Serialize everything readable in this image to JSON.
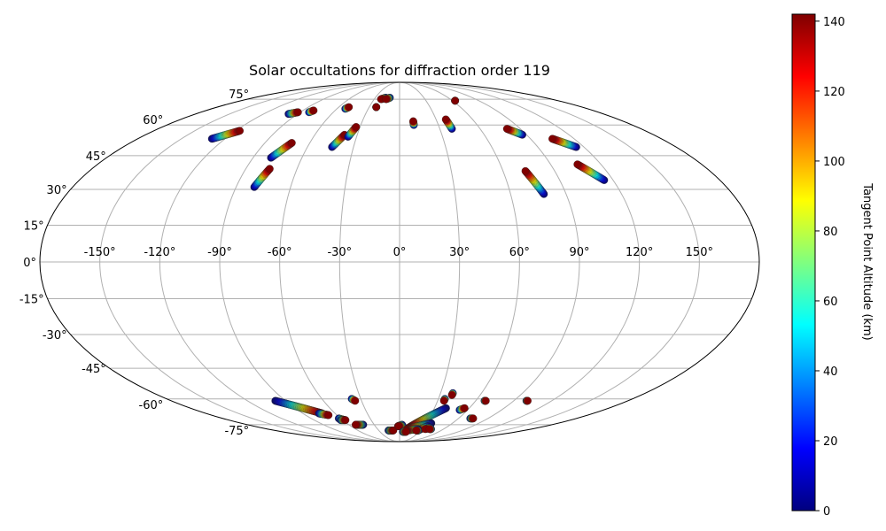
{
  "chart_data": {
    "type": "scatter",
    "projection": "mollweide",
    "title": "Solar occultations for diffraction order 119",
    "grid": true,
    "lon_ticks": [
      "-150°",
      "-120°",
      "-90°",
      "-60°",
      "-30°",
      "0°",
      "30°",
      "60°",
      "90°",
      "120°",
      "150°"
    ],
    "lon_tick_values": [
      -150,
      -120,
      -90,
      -60,
      -30,
      0,
      30,
      60,
      90,
      120,
      150
    ],
    "lat_ticks": [
      "75°",
      "60°",
      "45°",
      "30°",
      "15°",
      "0°",
      "-15°",
      "-30°",
      "-45°",
      "-60°",
      "-75°"
    ],
    "lat_tick_values": [
      75,
      60,
      45,
      30,
      15,
      0,
      -15,
      -30,
      -45,
      -60,
      -75
    ],
    "colorbar": {
      "label": "Tangent Point Altitude (km)",
      "min": 0,
      "max": 142,
      "colormap": "jet",
      "ticks": [
        "0",
        "20",
        "40",
        "60",
        "80",
        "100",
        "120",
        "140"
      ],
      "tick_values": [
        0,
        20,
        40,
        60,
        80,
        100,
        120,
        140
      ]
    },
    "series": [
      {
        "lon_start": -129,
        "lat_start": 53,
        "lon_end": -117,
        "lat_end": 57
      },
      {
        "lon_start": -98,
        "lat_start": 66,
        "lon_end": -92,
        "lat_end": 67
      },
      {
        "lon_start": -82,
        "lat_start": 67,
        "lon_end": -80,
        "lat_end": 68
      },
      {
        "lon_start": -52,
        "lat_start": 69,
        "lon_end": -50,
        "lat_end": 70
      },
      {
        "lon_start": -79,
        "lat_start": 44,
        "lon_end": -72,
        "lat_end": 51
      },
      {
        "lon_start": -80,
        "lat_start": 31,
        "lon_end": -76,
        "lat_end": 39
      },
      {
        "lon_start": -44,
        "lat_start": 49,
        "lon_end": -39,
        "lat_end": 55
      },
      {
        "lon_start": -36,
        "lat_start": 54,
        "lon_end": -33,
        "lat_end": 59
      },
      {
        "lon_start": -17,
        "lat_start": 76,
        "lon_end": -22,
        "lat_end": 75
      },
      {
        "lon_start": -23,
        "lat_start": 70,
        "lon_end": -23,
        "lat_end": 70
      },
      {
        "lon_start": -12,
        "lat_start": 76,
        "lon_end": -16,
        "lat_end": 75
      },
      {
        "lon_start": 11,
        "lat_start": 60,
        "lon_end": 11,
        "lat_end": 62
      },
      {
        "lon_start": 39,
        "lat_start": 58,
        "lon_end": 38,
        "lat_end": 63
      },
      {
        "lon_start": 63,
        "lat_start": 74,
        "lon_end": 63,
        "lat_end": 74
      },
      {
        "lon_start": 87,
        "lat_start": 55,
        "lon_end": 80,
        "lat_end": 58
      },
      {
        "lon_start": 115,
        "lat_start": 49,
        "lon_end": 105,
        "lat_end": 53
      },
      {
        "lon_start": 78,
        "lat_start": 28,
        "lon_end": 73,
        "lat_end": 38
      },
      {
        "lon_start": 115,
        "lat_start": 34,
        "lon_end": 106,
        "lat_end": 41
      },
      {
        "lon_start": -98,
        "lat_start": -61,
        "lon_end": -72,
        "lat_end": -68
      },
      {
        "lon_start": -75,
        "lat_start": -68,
        "lon_end": -68,
        "lat_end": -69
      },
      {
        "lon_start": -62,
        "lat_start": -71,
        "lon_end": -58,
        "lat_end": -72
      },
      {
        "lon_start": -62,
        "lat_start": -72,
        "lon_end": -57,
        "lat_end": -72
      },
      {
        "lon_start": -43,
        "lat_start": -75,
        "lon_end": -52,
        "lat_end": -75
      },
      {
        "lon_start": -37,
        "lat_start": -60,
        "lon_end": -35,
        "lat_end": -61
      },
      {
        "lon_start": -16,
        "lat_start": -79,
        "lon_end": -9,
        "lat_end": -79
      },
      {
        "lon_start": 40,
        "lat_start": -65,
        "lon_end": 12,
        "lat_end": -77
      },
      {
        "lon_start": 35,
        "lat_start": -60,
        "lon_end": 35,
        "lat_end": -61
      },
      {
        "lon_start": 39,
        "lat_start": -57,
        "lon_end": 39,
        "lat_end": -58
      },
      {
        "lon_start": 53,
        "lat_start": -66,
        "lon_end": 56,
        "lat_end": -65
      },
      {
        "lon_start": 67,
        "lat_start": -61,
        "lon_end": 68,
        "lat_end": -61
      },
      {
        "lon_start": 72,
        "lat_start": -71,
        "lon_end": 75,
        "lat_end": -71
      },
      {
        "lon_start": 100,
        "lat_start": -61,
        "lon_end": 101,
        "lat_end": -61
      },
      {
        "lon_start": 3,
        "lat_start": -75,
        "lon_end": -2,
        "lat_end": -76
      },
      {
        "lon_start": 4,
        "lat_start": -76,
        "lon_end": -1,
        "lat_end": -76
      },
      {
        "lon_start": 36,
        "lat_start": -74,
        "lon_end": 10,
        "lat_end": -78
      },
      {
        "lon_start": 35,
        "lat_start": -76,
        "lon_end": 26,
        "lat_end": -79
      },
      {
        "lon_start": 25,
        "lat_start": -78,
        "lon_end": 9,
        "lat_end": -79
      },
      {
        "lon_start": 5,
        "lat_start": -80,
        "lon_end": 10,
        "lat_end": -80
      },
      {
        "lon_start": 27,
        "lat_start": -79,
        "lon_end": 24,
        "lat_end": -79
      },
      {
        "lon_start": 40,
        "lat_start": -77,
        "lon_end": 35,
        "lat_end": -78
      },
      {
        "lon_start": 43,
        "lat_start": -78,
        "lon_end": 41,
        "lat_end": -78
      }
    ]
  }
}
